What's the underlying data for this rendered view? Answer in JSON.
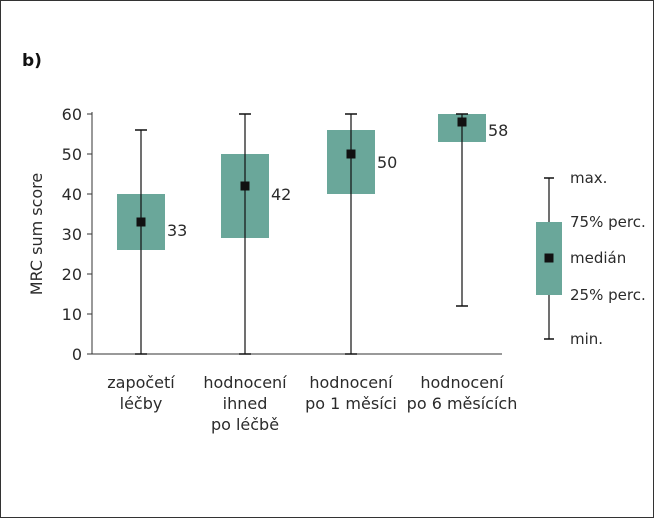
{
  "panel_label": "b)",
  "chart_data": {
    "type": "box",
    "ylabel": "MRC sum score",
    "xlabel": "",
    "ylim": [
      0,
      60
    ],
    "yticks": [
      "0",
      "10",
      "20",
      "30",
      "40",
      "50",
      "60"
    ],
    "grid": false,
    "box_color": "#6aa79a",
    "categories": [
      [
        "započetí",
        "léčby"
      ],
      [
        "hodnocení",
        "ihned",
        "po léčbě"
      ],
      [
        "hodnocení",
        "po 1 měsíci"
      ],
      [
        "hodnocení",
        "po 6 měsících"
      ]
    ],
    "groups": [
      {
        "min": 0,
        "q1": 26,
        "median": 33,
        "q3": 40,
        "max": 56,
        "label": "33"
      },
      {
        "min": 0,
        "q1": 29,
        "median": 42,
        "q3": 50,
        "max": 60,
        "label": "42"
      },
      {
        "min": 0,
        "q1": 40,
        "median": 50,
        "q3": 56,
        "max": 60,
        "label": "50"
      },
      {
        "min": 12,
        "q1": 53,
        "median": 58,
        "q3": 60,
        "max": 60,
        "label": "58"
      }
    ],
    "legend": {
      "position": "right",
      "max": "max.",
      "q3": "75% perc.",
      "median": "medián",
      "q1": "25% perc.",
      "min": "min."
    }
  }
}
